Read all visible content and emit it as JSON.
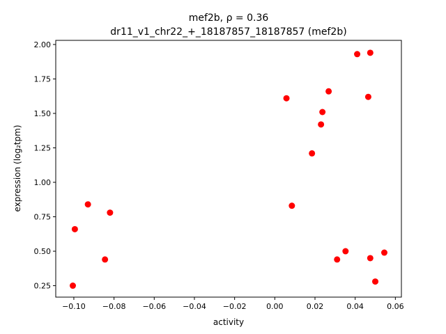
{
  "chart_data": {
    "type": "scatter",
    "title_line1": "mef2b, ρ = 0.36",
    "title_line2": "dr11_v1_chr22_+_18187857_18187857 (mef2b)",
    "xlabel": "activity",
    "ylabel": "expression (log₂tpm)",
    "xlim": [
      -0.109,
      0.063
    ],
    "ylim": [
      0.167,
      2.03
    ],
    "xticks": [
      -0.1,
      -0.08,
      -0.06,
      -0.04,
      -0.02,
      0.0,
      0.02,
      0.04,
      0.06
    ],
    "xtick_labels": [
      "−0.10",
      "−0.08",
      "−0.06",
      "−0.04",
      "−0.02",
      "0.00",
      "0.02",
      "0.04",
      "0.06"
    ],
    "yticks": [
      0.25,
      0.5,
      0.75,
      1.0,
      1.25,
      1.5,
      1.75,
      2.0
    ],
    "ytick_labels": [
      "0.25",
      "0.50",
      "0.75",
      "1.00",
      "1.25",
      "1.50",
      "1.75",
      "2.00"
    ],
    "marker_color": "#ff0000",
    "grid": false,
    "points": [
      {
        "x": -0.1005,
        "y": 0.25
      },
      {
        "x": -0.0995,
        "y": 0.66
      },
      {
        "x": -0.093,
        "y": 0.84
      },
      {
        "x": -0.0845,
        "y": 0.44
      },
      {
        "x": -0.082,
        "y": 0.78
      },
      {
        "x": 0.0058,
        "y": 1.61
      },
      {
        "x": 0.0085,
        "y": 0.83
      },
      {
        "x": 0.0185,
        "y": 1.21
      },
      {
        "x": 0.023,
        "y": 1.42
      },
      {
        "x": 0.0237,
        "y": 1.51
      },
      {
        "x": 0.0268,
        "y": 1.66
      },
      {
        "x": 0.031,
        "y": 0.44
      },
      {
        "x": 0.0352,
        "y": 0.5
      },
      {
        "x": 0.041,
        "y": 1.93
      },
      {
        "x": 0.0465,
        "y": 1.62
      },
      {
        "x": 0.0475,
        "y": 1.94
      },
      {
        "x": 0.0475,
        "y": 0.45
      },
      {
        "x": 0.05,
        "y": 0.28
      },
      {
        "x": 0.0545,
        "y": 0.49
      }
    ]
  }
}
